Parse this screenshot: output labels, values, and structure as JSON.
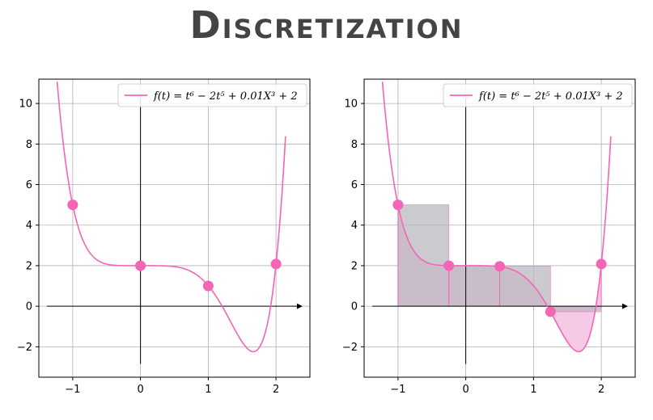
{
  "title": "Discretization",
  "colors": {
    "curve": "#f564b6",
    "point": "#f564b6",
    "fill_pink": "#f5c6e6",
    "fill_gray": "#b9b9c0",
    "grid": "#b0b0b0"
  },
  "chart_data": [
    {
      "type": "line",
      "legend_text": "f(t) = t⁶ − 2t⁵ + 0.01X³ + 2",
      "legend_position": "top-right",
      "grid": true,
      "xlim": [
        -1.5,
        2.5
      ],
      "ylim": [
        -3.5,
        11.2
      ],
      "xticks": [
        "−1",
        "0",
        "1",
        "2"
      ],
      "yticks": [
        "−2",
        "0",
        "2",
        "4",
        "6",
        "8",
        "10"
      ],
      "curve_domain": [
        -1.23,
        2.14
      ],
      "points": [
        {
          "x": -1,
          "y": 5
        },
        {
          "x": 0,
          "y": 2
        },
        {
          "x": 1,
          "y": 1
        },
        {
          "x": 2,
          "y": 2.08
        }
      ]
    },
    {
      "type": "area",
      "legend_text": "f(t) = t⁶ − 2t⁵ + 0.01X³ + 2",
      "legend_position": "top-right",
      "grid": true,
      "xlim": [
        -1.5,
        2.5
      ],
      "ylim": [
        -3.5,
        11.2
      ],
      "xticks": [
        "−1",
        "0",
        "1",
        "2"
      ],
      "yticks": [
        "−2",
        "0",
        "2",
        "4",
        "6",
        "8",
        "10"
      ],
      "curve_domain": [
        -1.23,
        2.14
      ],
      "points": [
        {
          "x": -1,
          "y": 5
        },
        {
          "x": -0.25,
          "y": 2
        },
        {
          "x": 0.5,
          "y": 1.97
        },
        {
          "x": 1.25,
          "y": -0.27
        },
        {
          "x": 2,
          "y": 2.08
        }
      ]
    }
  ]
}
